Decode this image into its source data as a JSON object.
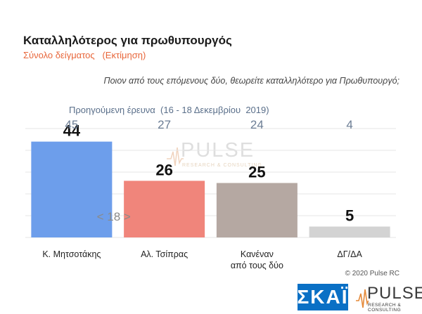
{
  "colors": {
    "subtitle": "#e8663a",
    "prev_values": "#6b7d94",
    "bars": [
      "#6d9eeb",
      "#f0857b",
      "#b5a8a2",
      "#d3d3d3"
    ],
    "grid": "#e6e6e6",
    "skai_blue": "#0a70c5",
    "pulse_orange": "#e58a3a"
  },
  "header": {
    "title": "Καταλληλότερος για πρωθυπουργός",
    "subtitle": "Σύνολο δείγματος   (Εκτίμηση)",
    "question": "Ποιον από τους επόμενους δύο, θεωρείτε καταλληλότερο για Πρωθυπουργό;",
    "previous_survey_label": "Προηγούμενη έρευνα  (16 - 18 Δεκεμβρίου  2019)"
  },
  "watermark": {
    "text": "PULSE",
    "sub": "RESEARCH & CONSULTING"
  },
  "chart_data": {
    "type": "bar",
    "categories": [
      [
        "Κ. Μητσοτάκης"
      ],
      [
        "Αλ. Τσίπρας"
      ],
      [
        "Κανέναν",
        "από τους δύο"
      ],
      [
        "ΔΓ/ΔΑ"
      ]
    ],
    "values": [
      44,
      26,
      25,
      5
    ],
    "previous_values": [
      45,
      27,
      24,
      4
    ],
    "difference_annotation": "< 18 >",
    "ylim": [
      0,
      50
    ],
    "grid": true,
    "xlabel": "",
    "ylabel": ""
  },
  "footer": {
    "copyright": "© 2020 Pulse RC",
    "skai_logo": "ΣΚΑΪ",
    "pulse_logo": "PULSE",
    "pulse_logo_sub": "RESEARCH & CONSULTING"
  }
}
